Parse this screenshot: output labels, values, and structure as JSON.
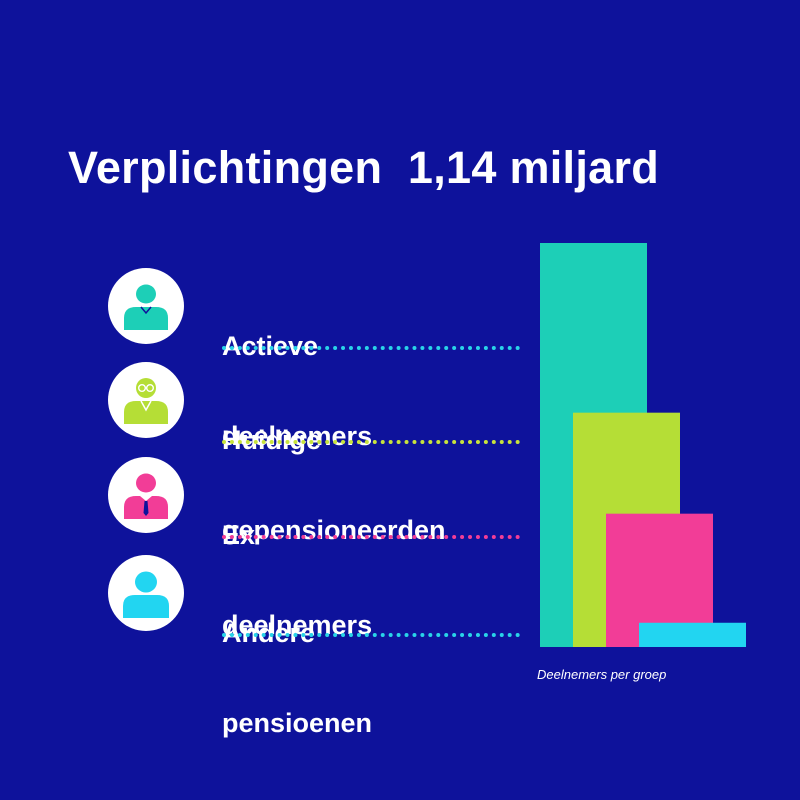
{
  "title": "Verplichtingen  1,14 miljard",
  "legend": [
    {
      "line1": "Actieve",
      "line2": "deelnemers",
      "color": "#1dcfb7",
      "dot_color": "#29d3e8",
      "icon": "user-icon"
    },
    {
      "line1": "Huidige",
      "line2": "gepensioneerden",
      "color": "#b5de36",
      "dot_color": "#c8e33c",
      "icon": "retiree-glasses-icon"
    },
    {
      "line1": "Ex-",
      "line2": "deelnemers",
      "color": "#f23d97",
      "dot_color": "#f23d97",
      "icon": "user-tie-icon"
    },
    {
      "line1": "Andere",
      "line2": "pensioenen",
      "color": "#22d5f1",
      "dot_color": "#29d3e8",
      "icon": "user-plain-icon"
    }
  ],
  "chart_data": {
    "type": "bar",
    "caption": "Deelnemers per groep",
    "categories": [
      "Actieve deelnemers",
      "Huidige gepensioneerden",
      "Ex-deelnemers",
      "Andere pensioenen"
    ],
    "values": [
      100,
      58,
      33,
      6
    ],
    "colors": [
      "#1dcfb7",
      "#b5de36",
      "#f23d97",
      "#22d5f1"
    ],
    "ylim": [
      0,
      100
    ],
    "axes_visible": false,
    "grid": false
  }
}
